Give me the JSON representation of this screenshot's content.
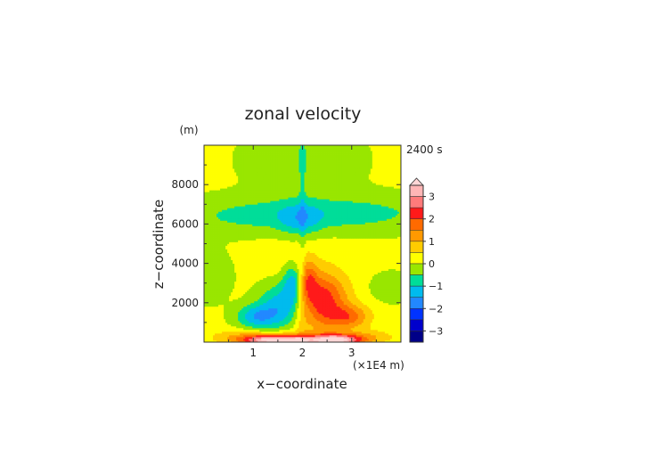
{
  "chart_data": {
    "type": "heatmap",
    "title": "zonal velocity",
    "xlabel": "x−coordinate",
    "ylabel": "z−coordinate",
    "x_unit": "(×1E4 m)",
    "y_unit": "(m)",
    "time_label": "2400 s",
    "xlim": [
      0,
      4
    ],
    "ylim": [
      0,
      10000
    ],
    "x_ticks": [
      {
        "value": 1,
        "label": "1"
      },
      {
        "value": 2,
        "label": "2"
      },
      {
        "value": 3,
        "label": "3"
      }
    ],
    "y_ticks": [
      {
        "value": 2000,
        "label": "2000"
      },
      {
        "value": 4000,
        "label": "4000"
      },
      {
        "value": 6000,
        "label": "6000"
      },
      {
        "value": 8000,
        "label": "8000"
      }
    ],
    "colorbar": {
      "min": -3.5,
      "max": 3.5,
      "ticks": [
        {
          "value": 3,
          "label": "3"
        },
        {
          "value": 2,
          "label": "2"
        },
        {
          "value": 1,
          "label": "1"
        },
        {
          "value": 0,
          "label": "0"
        },
        {
          "value": -1,
          "label": "−1"
        },
        {
          "value": -2,
          "label": "−2"
        },
        {
          "value": -3,
          "label": "−3"
        }
      ],
      "levels": [
        {
          "lo": 3.0,
          "hi": 3.5,
          "color": "#ffb6b6"
        },
        {
          "lo": 2.5,
          "hi": 3.0,
          "color": "#ff7a7a"
        },
        {
          "lo": 2.0,
          "hi": 2.5,
          "color": "#ff1a1a"
        },
        {
          "lo": 1.5,
          "hi": 2.0,
          "color": "#ff6a00"
        },
        {
          "lo": 1.0,
          "hi": 1.5,
          "color": "#ff9900"
        },
        {
          "lo": 0.5,
          "hi": 1.0,
          "color": "#ffcc00"
        },
        {
          "lo": 0.0,
          "hi": 0.5,
          "color": "#ffff00"
        },
        {
          "lo": -0.5,
          "hi": 0.0,
          "color": "#99e600"
        },
        {
          "lo": -1.0,
          "hi": -0.5,
          "color": "#00dd99"
        },
        {
          "lo": -1.5,
          "hi": -1.0,
          "color": "#00bbee"
        },
        {
          "lo": -2.0,
          "hi": -1.5,
          "color": "#2288ff"
        },
        {
          "lo": -2.5,
          "hi": -2.0,
          "color": "#0033ff"
        },
        {
          "lo": -3.0,
          "hi": -2.5,
          "color": "#0000cc"
        },
        {
          "lo": -3.5,
          "hi": -3.0,
          "color": "#000088"
        }
      ],
      "overflow_color": "#ffd6d6"
    },
    "field": {
      "background": 0.1,
      "features": [
        {
          "x": 2.0,
          "z": 1500,
          "sx": 0.07,
          "sz": 2200,
          "amp": 0.6
        },
        {
          "x": 1.78,
          "z": 900,
          "sx": 0.55,
          "sz": 2600,
          "amp": 0.35
        },
        {
          "x": 2.22,
          "z": 900,
          "sx": 0.55,
          "sz": 2600,
          "amp": 0.35
        },
        {
          "x": 1.6,
          "z": 1800,
          "sx": 0.35,
          "sz": 900,
          "amp": -1.9
        },
        {
          "x": 1.05,
          "z": 1300,
          "sx": 0.28,
          "sz": 420,
          "amp": -1.4
        },
        {
          "x": 1.82,
          "z": 3000,
          "sx": 0.15,
          "sz": 700,
          "amp": -1.6
        },
        {
          "x": 2.4,
          "z": 2200,
          "sx": 0.35,
          "sz": 900,
          "amp": 1.9
        },
        {
          "x": 2.95,
          "z": 1300,
          "sx": 0.3,
          "sz": 420,
          "amp": 1.4
        },
        {
          "x": 2.12,
          "z": 3200,
          "sx": 0.12,
          "sz": 700,
          "amp": 1.2
        },
        {
          "x": 1.4,
          "z": 120,
          "sx": 0.45,
          "sz": 200,
          "amp": 3.6
        },
        {
          "x": 2.65,
          "z": 120,
          "sx": 0.4,
          "sz": 200,
          "amp": 3.6
        },
        {
          "x": 1.9,
          "z": 80,
          "sx": 0.12,
          "sz": 120,
          "amp": 1.5
        },
        {
          "x": 0.6,
          "z": 300,
          "sx": 0.4,
          "sz": 250,
          "amp": 0.6
        },
        {
          "x": 3.4,
          "z": 300,
          "sx": 0.4,
          "sz": 250,
          "amp": 0.6
        },
        {
          "x": 1.2,
          "z": 6400,
          "sx": 1.5,
          "sz": 650,
          "amp": -0.6
        },
        {
          "x": 3.0,
          "z": 6600,
          "sx": 1.5,
          "sz": 650,
          "amp": -0.6
        },
        {
          "x": 1.78,
          "z": 6200,
          "sx": 0.22,
          "sz": 600,
          "amp": -0.5
        },
        {
          "x": 2.12,
          "z": 6200,
          "sx": 0.22,
          "sz": 600,
          "amp": -0.5
        },
        {
          "x": 2.0,
          "z": 9300,
          "sx": 0.8,
          "sz": 1100,
          "amp": -0.5
        },
        {
          "x": 3.8,
          "z": 2800,
          "sx": 0.3,
          "sz": 500,
          "amp": -0.5
        },
        {
          "x": 0.05,
          "z": 3400,
          "sx": 0.35,
          "sz": 900,
          "amp": -0.5
        },
        {
          "x": 2.0,
          "z": 5000,
          "sx": 0.05,
          "sz": 5000,
          "amp": -0.45
        }
      ]
    }
  }
}
